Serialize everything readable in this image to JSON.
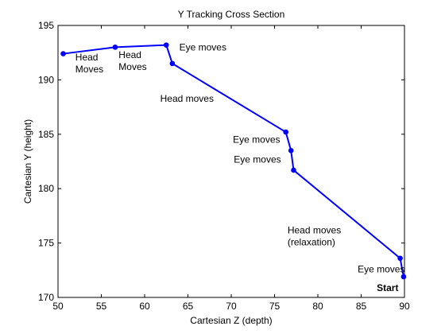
{
  "chart_data": {
    "type": "line",
    "title": "Y Tracking Cross Section",
    "xlabel": "Cartesian Z (depth)",
    "ylabel": "Cartesian Y (height)",
    "xlim": [
      50,
      90
    ],
    "ylim": [
      170,
      195
    ],
    "xticks": [
      "50",
      "55",
      "60",
      "65",
      "70",
      "75",
      "80",
      "85",
      "90"
    ],
    "yticks": [
      "170",
      "175",
      "180",
      "185",
      "190",
      "195"
    ],
    "grid": false,
    "line_color": "#0000ff",
    "series": [
      {
        "x": [
          50.6,
          56.6,
          62.5,
          63.2,
          76.3,
          76.9,
          77.2,
          89.5,
          89.9
        ],
        "y": [
          192.4,
          193.0,
          193.2,
          191.5,
          185.2,
          183.5,
          181.7,
          173.6,
          171.9
        ]
      }
    ],
    "annotations": [
      {
        "lines": [
          "Head",
          "Moves"
        ],
        "x": 52.0,
        "y": 191.8,
        "bold": false
      },
      {
        "lines": [
          "Head",
          "Moves"
        ],
        "x": 57.0,
        "y": 192.0,
        "bold": false
      },
      {
        "lines": [
          "Eye moves"
        ],
        "x": 64.0,
        "y": 192.7,
        "bold": false
      },
      {
        "lines": [
          "Head moves"
        ],
        "x": 61.8,
        "y": 188.0,
        "bold": false
      },
      {
        "lines": [
          "Eye moves"
        ],
        "x": 70.2,
        "y": 184.2,
        "bold": false
      },
      {
        "lines": [
          "Eye moves"
        ],
        "x": 70.3,
        "y": 182.4,
        "bold": false
      },
      {
        "lines": [
          "Head moves",
          "(relaxation)"
        ],
        "x": 76.5,
        "y": 175.9,
        "bold": false
      },
      {
        "lines": [
          "Eye moves"
        ],
        "x": 84.6,
        "y": 172.3,
        "bold": false
      },
      {
        "lines": [
          "Start"
        ],
        "x": 86.8,
        "y": 170.6,
        "bold": true
      }
    ]
  }
}
